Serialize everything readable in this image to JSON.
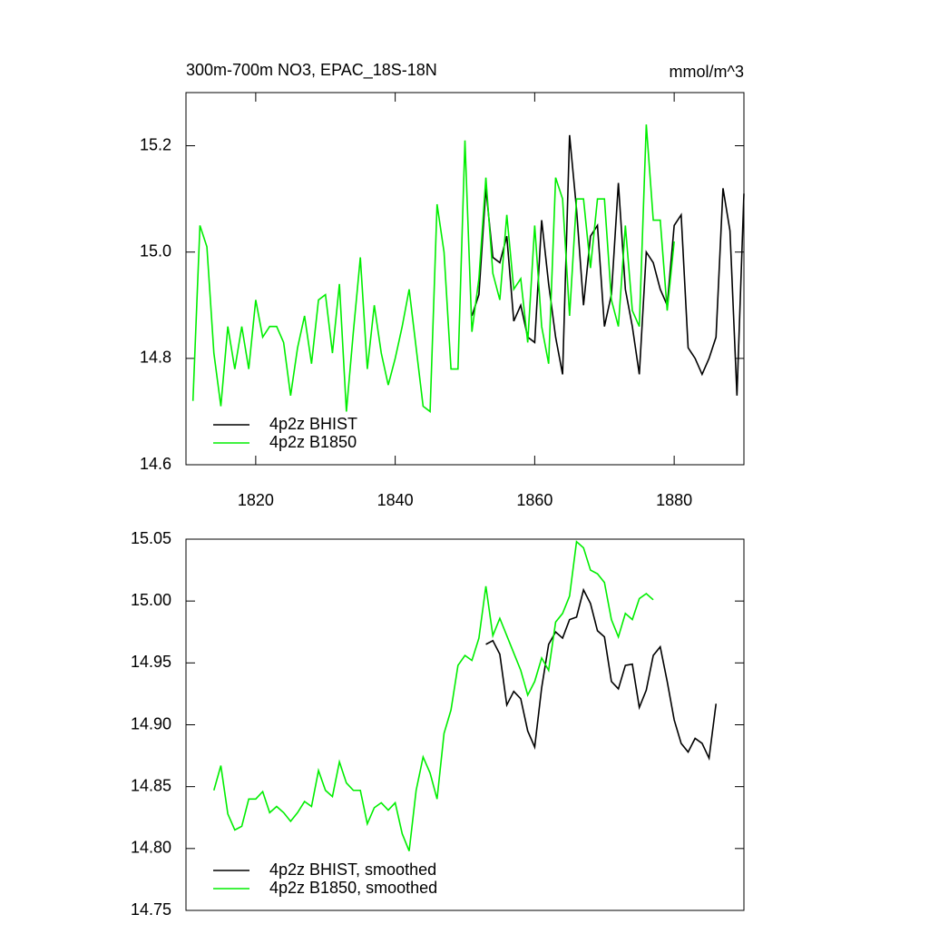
{
  "chart_data": [
    {
      "type": "line",
      "title": "300m-700m NO3, EPAC_18S-18N",
      "subtitle": "mmol/m^3",
      "x": [
        1811,
        1812,
        1813,
        1814,
        1815,
        1816,
        1817,
        1818,
        1819,
        1820,
        1821,
        1822,
        1823,
        1824,
        1825,
        1826,
        1827,
        1828,
        1829,
        1830,
        1831,
        1832,
        1833,
        1834,
        1835,
        1836,
        1837,
        1838,
        1839,
        1840,
        1841,
        1842,
        1843,
        1844,
        1845,
        1846,
        1847,
        1848,
        1849,
        1850,
        1851,
        1852,
        1853,
        1854,
        1855,
        1856,
        1857,
        1858,
        1859,
        1860,
        1861,
        1862,
        1863,
        1864,
        1865,
        1866,
        1867,
        1868,
        1869,
        1870,
        1871,
        1872,
        1873,
        1874,
        1875,
        1876,
        1877,
        1878,
        1879,
        1880,
        1881,
        1882,
        1883,
        1884,
        1885,
        1886,
        1887,
        1888,
        1889,
        1890
      ],
      "series": [
        {
          "name": "4p2z BHIST",
          "color": "#000000",
          "values": [
            null,
            null,
            null,
            null,
            null,
            null,
            null,
            null,
            null,
            null,
            null,
            null,
            null,
            null,
            null,
            null,
            null,
            null,
            null,
            null,
            null,
            null,
            null,
            null,
            null,
            null,
            null,
            null,
            null,
            null,
            null,
            null,
            null,
            null,
            null,
            null,
            null,
            null,
            null,
            null,
            14.88,
            14.92,
            15.12,
            14.99,
            14.98,
            15.03,
            14.87,
            14.9,
            14.84,
            14.83,
            15.06,
            14.94,
            14.84,
            14.77,
            15.22,
            15.08,
            14.9,
            15.03,
            15.05,
            14.86,
            14.92,
            15.13,
            14.93,
            14.86,
            14.77,
            15.0,
            14.98,
            14.93,
            14.9,
            15.05,
            15.07,
            14.82,
            14.8,
            14.77,
            14.8,
            14.84,
            15.12,
            15.04,
            14.73,
            15.11
          ]
        },
        {
          "name": "4p2z B1850",
          "color": "#00ee00",
          "values": [
            14.72,
            15.05,
            15.01,
            14.81,
            14.71,
            14.86,
            14.78,
            14.86,
            14.78,
            14.91,
            14.84,
            14.86,
            14.86,
            14.83,
            14.73,
            14.82,
            14.88,
            14.79,
            14.91,
            14.92,
            14.81,
            14.94,
            14.7,
            14.85,
            14.99,
            14.78,
            14.9,
            14.81,
            14.75,
            14.8,
            14.86,
            14.93,
            14.82,
            14.71,
            14.7,
            15.09,
            15.0,
            14.78,
            14.78,
            15.21,
            14.85,
            14.95,
            15.14,
            14.96,
            14.91,
            15.07,
            14.93,
            14.95,
            14.83,
            15.05,
            14.86,
            14.79,
            15.14,
            15.1,
            14.88,
            15.1,
            15.1,
            14.97,
            15.1,
            15.1,
            14.91,
            14.86,
            15.05,
            14.89,
            14.86,
            15.24,
            15.06,
            15.06,
            14.89,
            15.02,
            null,
            null,
            null,
            null,
            null,
            null,
            null,
            null,
            null,
            null
          ]
        }
      ],
      "xlim": [
        1810,
        1890
      ],
      "xticks": [
        1820,
        1840,
        1860,
        1880
      ],
      "ylim": [
        14.6,
        15.3
      ],
      "yticks": [
        14.6,
        14.8,
        {
          "value": 15,
          "label": "15.0"
        },
        15.2
      ]
    },
    {
      "type": "line",
      "x": [
        1814,
        1815,
        1816,
        1817,
        1818,
        1819,
        1820,
        1821,
        1822,
        1823,
        1824,
        1825,
        1826,
        1827,
        1828,
        1829,
        1830,
        1831,
        1832,
        1833,
        1834,
        1835,
        1836,
        1837,
        1838,
        1839,
        1840,
        1841,
        1842,
        1843,
        1844,
        1845,
        1846,
        1847,
        1848,
        1849,
        1850,
        1851,
        1852,
        1853,
        1854,
        1855,
        1856,
        1857,
        1858,
        1859,
        1860,
        1861,
        1862,
        1863,
        1864,
        1865,
        1866,
        1867,
        1868,
        1869,
        1870,
        1871,
        1872,
        1873,
        1874,
        1875,
        1876,
        1877,
        1878,
        1879,
        1880,
        1881,
        1882,
        1883,
        1884,
        1885,
        1886
      ],
      "series": [
        {
          "name": "4p2z BHIST, smoothed",
          "color": "#000000",
          "values": [
            null,
            null,
            null,
            null,
            null,
            null,
            null,
            null,
            null,
            null,
            null,
            null,
            null,
            null,
            null,
            null,
            null,
            null,
            null,
            null,
            null,
            null,
            null,
            null,
            null,
            null,
            null,
            null,
            null,
            null,
            null,
            null,
            null,
            null,
            null,
            null,
            null,
            null,
            null,
            14.965,
            14.968,
            14.957,
            14.916,
            14.927,
            14.921,
            14.895,
            14.882,
            14.93,
            14.965,
            14.975,
            14.97,
            14.985,
            14.987,
            15.009,
            14.998,
            14.976,
            14.971,
            14.935,
            14.929,
            14.948,
            14.949,
            14.914,
            14.928,
            14.956,
            14.963,
            14.935,
            14.904,
            14.885,
            14.878,
            14.889,
            14.885,
            14.873,
            14.917
          ]
        },
        {
          "name": "4p2z B1850, smoothed",
          "color": "#00ee00",
          "values": [
            14.847,
            14.867,
            14.828,
            14.815,
            14.818,
            14.84,
            14.84,
            14.846,
            14.829,
            14.834,
            14.829,
            14.822,
            14.829,
            14.838,
            14.834,
            14.863,
            14.847,
            14.842,
            14.87,
            14.853,
            14.847,
            14.847,
            14.82,
            14.833,
            14.837,
            14.831,
            14.837,
            14.812,
            14.798,
            14.847,
            14.874,
            14.861,
            14.84,
            14.893,
            14.912,
            14.948,
            14.956,
            14.952,
            14.97,
            15.012,
            14.972,
            14.986,
            14.972,
            14.958,
            14.944,
            14.924,
            14.935,
            14.954,
            14.944,
            14.983,
            14.99,
            15.004,
            15.048,
            15.043,
            15.025,
            15.022,
            15.015,
            14.985,
            14.971,
            14.99,
            14.985,
            15.002,
            15.006,
            15.001,
            null,
            null,
            null,
            null,
            null,
            null,
            null,
            null,
            null
          ]
        }
      ],
      "xlim": [
        1810,
        1890
      ],
      "ylim": [
        14.75,
        15.05
      ],
      "yticks": [
        14.75,
        {
          "value": 14.8,
          "label": "14.80"
        },
        14.85,
        {
          "value": 14.9,
          "label": "14.90"
        },
        14.95,
        {
          "value": 15,
          "label": "15.00"
        },
        15.05
      ]
    }
  ]
}
